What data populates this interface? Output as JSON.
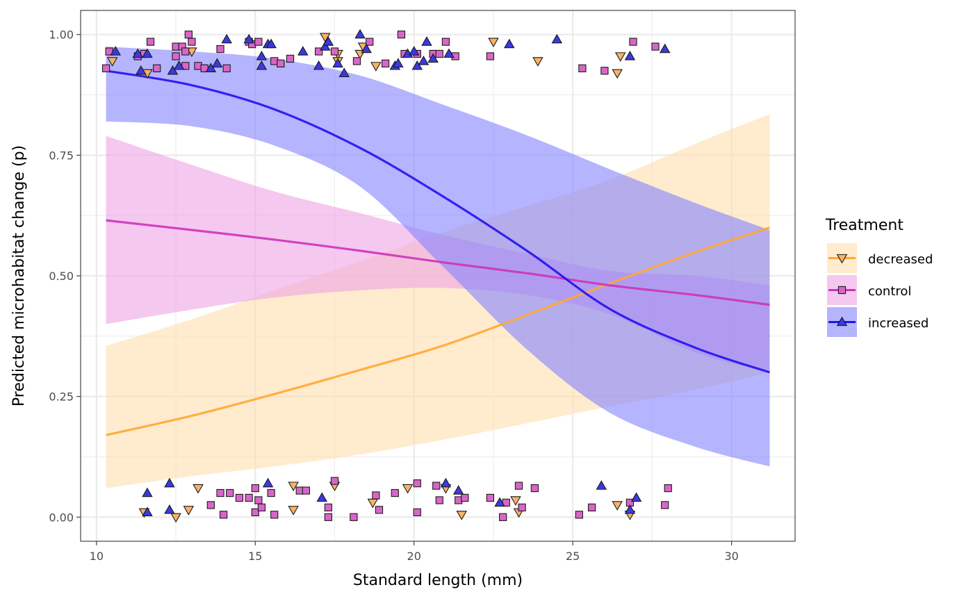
{
  "chart_data": {
    "type": "line",
    "xlabel": "Standard length (mm)",
    "ylabel": "Predicted microhabitat change (p)",
    "xlim": [
      9.5,
      32.0
    ],
    "ylim": [
      -0.05,
      1.05
    ],
    "xticks": [
      10,
      15,
      20,
      25,
      30
    ],
    "xtick_labels": [
      "10",
      "15",
      "20",
      "25",
      "30"
    ],
    "yticks": [
      0,
      0.25,
      0.5,
      0.75,
      1.0
    ],
    "ytick_labels": [
      "0.00",
      "0.25",
      "0.50",
      "0.75",
      "1.00"
    ],
    "grid": true,
    "legend_title": "Treatment",
    "legend_position": "right",
    "series": [
      {
        "name": "decreased",
        "color": "#FFA733",
        "ribbon_color": "#FFDEAD",
        "marker": "triangle-down",
        "marker_fill": "#F7B267",
        "x": [
          10.3,
          13.0,
          15.6,
          18.3,
          20.9,
          23.6,
          26.2,
          28.9,
          31.2
        ],
        "y": [
          0.17,
          0.21,
          0.255,
          0.305,
          0.355,
          0.42,
          0.485,
          0.55,
          0.6
        ],
        "lower": [
          0.06,
          0.085,
          0.105,
          0.13,
          0.16,
          0.195,
          0.23,
          0.265,
          0.3
        ],
        "upper": [
          0.355,
          0.41,
          0.47,
          0.53,
          0.59,
          0.645,
          0.7,
          0.775,
          0.835
        ],
        "points": [
          [
            10.5,
            0.945
          ],
          [
            11.6,
            0.92
          ],
          [
            13.0,
            0.965
          ],
          [
            17.2,
            0.995
          ],
          [
            17.6,
            0.96
          ],
          [
            18.4,
            0.975
          ],
          [
            18.3,
            0.96
          ],
          [
            18.8,
            0.935
          ],
          [
            22.5,
            0.985
          ],
          [
            23.9,
            0.945
          ],
          [
            26.4,
            0.92
          ],
          [
            26.5,
            0.955
          ],
          [
            17.6,
            0.945
          ],
          [
            11.5,
            0.01
          ],
          [
            12.5,
            0.0
          ],
          [
            12.9,
            0.015
          ],
          [
            13.2,
            0.06
          ],
          [
            16.2,
            0.065
          ],
          [
            16.2,
            0.015
          ],
          [
            17.5,
            0.065
          ],
          [
            18.7,
            0.03
          ],
          [
            19.8,
            0.06
          ],
          [
            21.0,
            0.06
          ],
          [
            21.5,
            0.005
          ],
          [
            23.2,
            0.035
          ],
          [
            23.3,
            0.01
          ],
          [
            26.4,
            0.025
          ],
          [
            26.8,
            0.005
          ]
        ]
      },
      {
        "name": "control",
        "color": "#CC33BB",
        "ribbon_color": "#EFA4E4",
        "marker": "square",
        "marker_fill": "#D966C7",
        "x": [
          10.3,
          13.0,
          15.6,
          18.3,
          20.9,
          23.6,
          26.2,
          28.9,
          31.2
        ],
        "y": [
          0.615,
          0.595,
          0.575,
          0.552,
          0.528,
          0.505,
          0.48,
          0.46,
          0.44
        ],
        "lower": [
          0.4,
          0.43,
          0.455,
          0.47,
          0.475,
          0.46,
          0.42,
          0.34,
          0.3
        ],
        "upper": [
          0.79,
          0.73,
          0.675,
          0.63,
          0.585,
          0.545,
          0.51,
          0.5,
          0.48
        ],
        "points": [
          [
            10.4,
            0.965
          ],
          [
            10.3,
            0.93
          ],
          [
            11.3,
            0.955
          ],
          [
            11.5,
            0.96
          ],
          [
            11.7,
            0.985
          ],
          [
            11.9,
            0.93
          ],
          [
            12.5,
            0.975
          ],
          [
            12.5,
            0.955
          ],
          [
            12.7,
            0.975
          ],
          [
            12.8,
            0.965
          ],
          [
            12.8,
            0.935
          ],
          [
            12.9,
            1.0
          ],
          [
            13.0,
            0.985
          ],
          [
            13.2,
            0.935
          ],
          [
            13.4,
            0.93
          ],
          [
            13.9,
            0.97
          ],
          [
            14.1,
            0.93
          ],
          [
            14.8,
            0.985
          ],
          [
            14.9,
            0.98
          ],
          [
            15.1,
            0.985
          ],
          [
            15.6,
            0.945
          ],
          [
            15.8,
            0.94
          ],
          [
            16.1,
            0.95
          ],
          [
            17.0,
            0.965
          ],
          [
            17.5,
            0.965
          ],
          [
            18.2,
            0.945
          ],
          [
            18.6,
            0.985
          ],
          [
            19.1,
            0.94
          ],
          [
            19.6,
            1.0
          ],
          [
            19.7,
            0.96
          ],
          [
            20.1,
            0.96
          ],
          [
            20.6,
            0.96
          ],
          [
            20.8,
            0.96
          ],
          [
            21.0,
            0.985
          ],
          [
            21.3,
            0.955
          ],
          [
            22.4,
            0.955
          ],
          [
            25.3,
            0.93
          ],
          [
            26.0,
            0.925
          ],
          [
            26.9,
            0.985
          ],
          [
            27.6,
            0.975
          ],
          [
            13.6,
            0.025
          ],
          [
            13.9,
            0.05
          ],
          [
            14.0,
            0.005
          ],
          [
            14.2,
            0.05
          ],
          [
            14.5,
            0.04
          ],
          [
            14.8,
            0.04
          ],
          [
            15.0,
            0.06
          ],
          [
            15.0,
            0.01
          ],
          [
            15.1,
            0.035
          ],
          [
            15.2,
            0.02
          ],
          [
            15.5,
            0.05
          ],
          [
            15.6,
            0.005
          ],
          [
            16.4,
            0.055
          ],
          [
            16.6,
            0.055
          ],
          [
            17.3,
            0.02
          ],
          [
            17.3,
            0.0
          ],
          [
            17.5,
            0.075
          ],
          [
            18.1,
            0.0
          ],
          [
            18.8,
            0.045
          ],
          [
            18.9,
            0.015
          ],
          [
            19.4,
            0.05
          ],
          [
            20.1,
            0.07
          ],
          [
            20.1,
            0.01
          ],
          [
            20.7,
            0.065
          ],
          [
            20.8,
            0.035
          ],
          [
            21.4,
            0.035
          ],
          [
            21.6,
            0.04
          ],
          [
            22.4,
            0.04
          ],
          [
            22.8,
            0.0
          ],
          [
            22.9,
            0.03
          ],
          [
            23.3,
            0.065
          ],
          [
            23.4,
            0.02
          ],
          [
            23.8,
            0.06
          ],
          [
            25.2,
            0.005
          ],
          [
            25.6,
            0.02
          ],
          [
            26.8,
            0.03
          ],
          [
            27.9,
            0.025
          ],
          [
            28.0,
            0.06
          ]
        ]
      },
      {
        "name": "increased",
        "color": "#2211EE",
        "ribbon_color": "#8282FF",
        "marker": "triangle-up",
        "marker_fill": "#3A3AE0",
        "x": [
          10.3,
          13.0,
          15.6,
          18.3,
          20.9,
          23.6,
          26.2,
          28.9,
          31.2
        ],
        "y": [
          0.925,
          0.895,
          0.845,
          0.765,
          0.665,
          0.55,
          0.43,
          0.35,
          0.3
        ],
        "lower": [
          0.82,
          0.81,
          0.77,
          0.685,
          0.52,
          0.345,
          0.215,
          0.145,
          0.105
        ],
        "upper": [
          0.975,
          0.965,
          0.95,
          0.915,
          0.855,
          0.79,
          0.72,
          0.65,
          0.595
        ],
        "points": [
          [
            10.6,
            0.965
          ],
          [
            11.3,
            0.96
          ],
          [
            11.4,
            0.925
          ],
          [
            11.6,
            0.96
          ],
          [
            12.4,
            0.925
          ],
          [
            12.6,
            0.935
          ],
          [
            13.6,
            0.93
          ],
          [
            13.8,
            0.94
          ],
          [
            14.1,
            0.99
          ],
          [
            14.8,
            0.99
          ],
          [
            15.2,
            0.935
          ],
          [
            15.2,
            0.955
          ],
          [
            15.4,
            0.98
          ],
          [
            15.5,
            0.98
          ],
          [
            16.5,
            0.965
          ],
          [
            17.0,
            0.935
          ],
          [
            17.2,
            0.975
          ],
          [
            17.3,
            0.985
          ],
          [
            17.6,
            0.94
          ],
          [
            17.8,
            0.92
          ],
          [
            18.3,
            1.0
          ],
          [
            18.5,
            0.97
          ],
          [
            19.4,
            0.935
          ],
          [
            19.5,
            0.94
          ],
          [
            19.8,
            0.96
          ],
          [
            20.0,
            0.965
          ],
          [
            20.1,
            0.935
          ],
          [
            20.3,
            0.945
          ],
          [
            20.4,
            0.985
          ],
          [
            20.6,
            0.95
          ],
          [
            21.1,
            0.96
          ],
          [
            23.0,
            0.98
          ],
          [
            24.5,
            0.99
          ],
          [
            26.8,
            0.955
          ],
          [
            27.9,
            0.97
          ],
          [
            11.6,
            0.05
          ],
          [
            11.6,
            0.01
          ],
          [
            12.3,
            0.015
          ],
          [
            12.3,
            0.07
          ],
          [
            15.4,
            0.07
          ],
          [
            17.1,
            0.04
          ],
          [
            21.0,
            0.07
          ],
          [
            21.4,
            0.055
          ],
          [
            22.7,
            0.03
          ],
          [
            25.9,
            0.065
          ],
          [
            26.8,
            0.015
          ],
          [
            27.0,
            0.04
          ]
        ]
      }
    ]
  }
}
